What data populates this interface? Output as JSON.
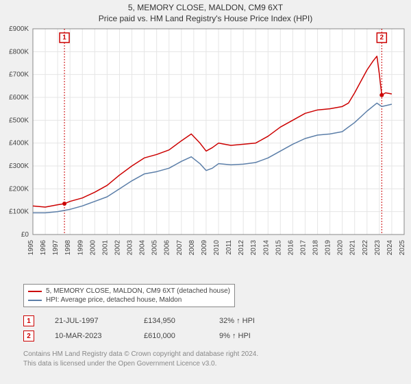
{
  "title": "5, MEMORY CLOSE, MALDON, CM9 6XT",
  "subtitle": "Price paid vs. HM Land Registry's House Price Index (HPI)",
  "chart": {
    "type": "line",
    "background_color": "#f0f0f0",
    "plot_bg": "#ffffff",
    "grid_color": "#e5e5e5",
    "axis_color": "#888888",
    "xaxis": {
      "min": 1995,
      "max": 2025,
      "ticks": [
        1995,
        1996,
        1997,
        1998,
        1999,
        2000,
        2001,
        2002,
        2003,
        2004,
        2005,
        2006,
        2007,
        2008,
        2009,
        2010,
        2011,
        2012,
        2013,
        2014,
        2015,
        2016,
        2017,
        2018,
        2019,
        2020,
        2021,
        2022,
        2023,
        2024,
        2025
      ],
      "label_fontsize": 10,
      "label_rotation": -90
    },
    "yaxis": {
      "min": 0,
      "max": 900000,
      "ticks": [
        0,
        100000,
        200000,
        300000,
        400000,
        500000,
        600000,
        700000,
        800000,
        900000
      ],
      "tick_labels": [
        "£0",
        "£100K",
        "£200K",
        "£300K",
        "£400K",
        "£500K",
        "£600K",
        "£700K",
        "£800K",
        "£900K"
      ],
      "label_fontsize": 10
    },
    "series": [
      {
        "name": "price_paid",
        "label": "5, MEMORY CLOSE, MALDON, CM9 6XT (detached house)",
        "color": "#cc0000",
        "line_width": 1.5,
        "data": [
          [
            1995.0,
            125000
          ],
          [
            1996.0,
            120000
          ],
          [
            1997.0,
            130000
          ],
          [
            1997.55,
            134950
          ],
          [
            1998.0,
            145000
          ],
          [
            1999.0,
            160000
          ],
          [
            2000.0,
            185000
          ],
          [
            2001.0,
            215000
          ],
          [
            2002.0,
            260000
          ],
          [
            2003.0,
            300000
          ],
          [
            2004.0,
            335000
          ],
          [
            2005.0,
            350000
          ],
          [
            2006.0,
            370000
          ],
          [
            2007.0,
            410000
          ],
          [
            2007.8,
            440000
          ],
          [
            2008.5,
            400000
          ],
          [
            2009.0,
            365000
          ],
          [
            2009.5,
            380000
          ],
          [
            2010.0,
            400000
          ],
          [
            2010.5,
            395000
          ],
          [
            2011.0,
            390000
          ],
          [
            2012.0,
            395000
          ],
          [
            2013.0,
            400000
          ],
          [
            2014.0,
            430000
          ],
          [
            2015.0,
            470000
          ],
          [
            2016.0,
            500000
          ],
          [
            2017.0,
            530000
          ],
          [
            2018.0,
            545000
          ],
          [
            2019.0,
            550000
          ],
          [
            2020.0,
            560000
          ],
          [
            2020.5,
            575000
          ],
          [
            2021.0,
            620000
          ],
          [
            2021.5,
            670000
          ],
          [
            2022.0,
            720000
          ],
          [
            2022.5,
            760000
          ],
          [
            2022.8,
            780000
          ],
          [
            2023.0,
            700000
          ],
          [
            2023.19,
            610000
          ],
          [
            2023.5,
            620000
          ],
          [
            2024.0,
            615000
          ]
        ]
      },
      {
        "name": "hpi",
        "label": "HPI: Average price, detached house, Maldon",
        "color": "#5b7ea8",
        "line_width": 1.5,
        "data": [
          [
            1995.0,
            95000
          ],
          [
            1996.0,
            95000
          ],
          [
            1997.0,
            100000
          ],
          [
            1998.0,
            110000
          ],
          [
            1999.0,
            125000
          ],
          [
            2000.0,
            145000
          ],
          [
            2001.0,
            165000
          ],
          [
            2002.0,
            200000
          ],
          [
            2003.0,
            235000
          ],
          [
            2004.0,
            265000
          ],
          [
            2005.0,
            275000
          ],
          [
            2006.0,
            290000
          ],
          [
            2007.0,
            320000
          ],
          [
            2007.8,
            340000
          ],
          [
            2008.5,
            310000
          ],
          [
            2009.0,
            280000
          ],
          [
            2009.5,
            290000
          ],
          [
            2010.0,
            310000
          ],
          [
            2011.0,
            305000
          ],
          [
            2012.0,
            308000
          ],
          [
            2013.0,
            315000
          ],
          [
            2014.0,
            335000
          ],
          [
            2015.0,
            365000
          ],
          [
            2016.0,
            395000
          ],
          [
            2017.0,
            420000
          ],
          [
            2018.0,
            435000
          ],
          [
            2019.0,
            440000
          ],
          [
            2020.0,
            450000
          ],
          [
            2021.0,
            490000
          ],
          [
            2022.0,
            540000
          ],
          [
            2022.8,
            575000
          ],
          [
            2023.19,
            560000
          ],
          [
            2024.0,
            570000
          ]
        ]
      }
    ],
    "markers": [
      {
        "id": "1",
        "x": 1997.55,
        "y": 134950,
        "vline": true
      },
      {
        "id": "2",
        "x": 2023.19,
        "y": 610000,
        "vline": true
      }
    ]
  },
  "legend": {
    "items": [
      {
        "color": "#cc0000",
        "label": "5, MEMORY CLOSE, MALDON, CM9 6XT (detached house)"
      },
      {
        "color": "#5b7ea8",
        "label": "HPI: Average price, detached house, Maldon"
      }
    ]
  },
  "data_points": [
    {
      "id": "1",
      "date": "21-JUL-1997",
      "price": "£134,950",
      "hpi": "32% ↑ HPI"
    },
    {
      "id": "2",
      "date": "10-MAR-2023",
      "price": "£610,000",
      "hpi": "9% ↑ HPI"
    }
  ],
  "footer": {
    "line1": "Contains HM Land Registry data © Crown copyright and database right 2024.",
    "line2": "This data is licensed under the Open Government Licence v3.0."
  }
}
